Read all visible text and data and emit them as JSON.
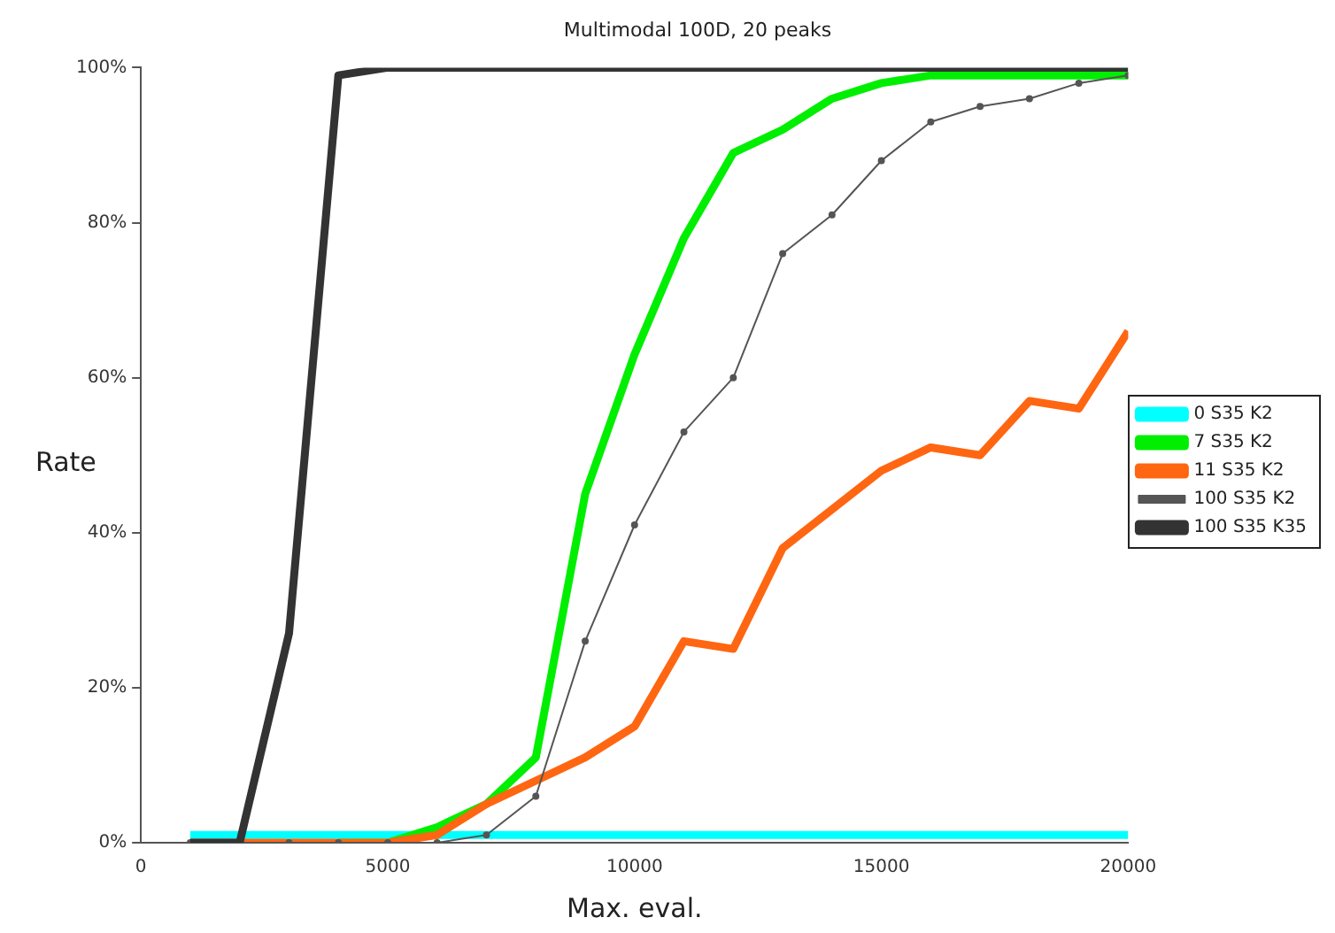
{
  "chart_data": {
    "type": "line",
    "title": "Multimodal 100D, 20 peaks",
    "xlabel": "Max. eval.",
    "ylabel": "Rate",
    "x": [
      1000,
      2000,
      3000,
      4000,
      5000,
      6000,
      7000,
      8000,
      9000,
      10000,
      11000,
      12000,
      13000,
      14000,
      15000,
      16000,
      17000,
      18000,
      19000,
      20000
    ],
    "series": [
      {
        "name": "0 S35 K2",
        "color": "#00ffff",
        "marker": "none",
        "values": [
          1,
          1,
          1,
          1,
          1,
          1,
          1,
          1,
          1,
          1,
          1,
          1,
          1,
          1,
          1,
          1,
          1,
          1,
          1,
          1
        ]
      },
      {
        "name": "7 S35 K2",
        "color": "#00ee00",
        "marker": "none",
        "values": [
          null,
          null,
          null,
          0,
          0,
          2,
          5,
          11,
          45,
          63,
          78,
          89,
          92,
          96,
          98,
          99,
          99,
          99,
          99,
          99
        ]
      },
      {
        "name": "11 S35 K2",
        "color": "#ff6611",
        "marker": "none",
        "values": [
          0,
          0,
          0,
          0,
          0,
          1,
          5,
          8,
          11,
          15,
          26,
          25,
          38,
          43,
          48,
          51,
          50,
          57,
          56,
          66
        ]
      },
      {
        "name": "100 S35 K2",
        "color": "#555555",
        "marker": "circle",
        "values": [
          0,
          0,
          0,
          0,
          0,
          0,
          1,
          6,
          26,
          41,
          53,
          60,
          76,
          81,
          88,
          93,
          95,
          96,
          98,
          99
        ]
      },
      {
        "name": "100 S35 K35",
        "color": "#333333",
        "marker": "none",
        "values": [
          0,
          0,
          27,
          99,
          100,
          100,
          100,
          100,
          100,
          100,
          100,
          100,
          100,
          100,
          100,
          100,
          100,
          100,
          100,
          100
        ]
      }
    ],
    "xlim": [
      0,
      20000
    ],
    "xticks": [
      0,
      5000,
      10000,
      15000,
      20000
    ],
    "ylim": [
      0,
      100
    ],
    "yticks": [
      {
        "value": 0,
        "label": "0%"
      },
      {
        "value": 20,
        "label": "20%"
      },
      {
        "value": 40,
        "label": "40%"
      },
      {
        "value": 60,
        "label": "60%"
      },
      {
        "value": 80,
        "label": "80%"
      },
      {
        "value": 100,
        "label": "100%"
      }
    ],
    "grid": false,
    "legend": "right"
  }
}
